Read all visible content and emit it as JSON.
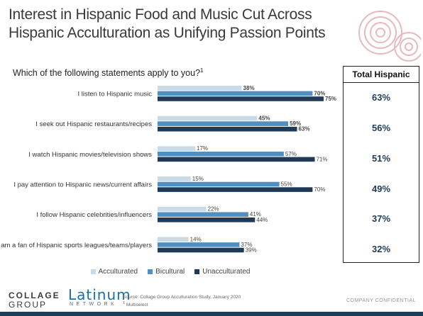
{
  "header": {
    "title": "Interest in Hispanic Food and Music Cut Across Hispanic Acculturation as Unifying Passion Points",
    "question": "Which of the following statements apply to you?",
    "question_footnote": "1"
  },
  "chart_data": {
    "type": "bar",
    "orientation": "horizontal",
    "categories": [
      "I listen to Hispanic music",
      "I seek out Hispanic restaurants/recipes",
      "I watch Hispanic movies/television shows",
      "I pay attention to Hispanic news/current affairs",
      "I follow Hispanic celebrities/influencers",
      "I am a fan of Hispanic sports leagues/teams/players"
    ],
    "series": [
      {
        "name": "Acculturated",
        "color": "#c9dbe8",
        "values": [
          38,
          45,
          17,
          15,
          22,
          14
        ],
        "labels": [
          "38%",
          "45%",
          "17%",
          "15%",
          "22%",
          "14%"
        ]
      },
      {
        "name": "Bicultural",
        "color": "#4f8fc2",
        "values": [
          70,
          59,
          57,
          55,
          41,
          37
        ],
        "labels": [
          "70%",
          "59%",
          "57%",
          "55%",
          "41%",
          "37%"
        ]
      },
      {
        "name": "Unacculturated",
        "color": "#1f3a56",
        "values": [
          75,
          63,
          71,
          70,
          44,
          39
        ],
        "labels": [
          "75%",
          "63%",
          "71%",
          "70%",
          "44%",
          "39%"
        ]
      }
    ],
    "bold_labels": [
      true,
      true,
      false,
      false,
      false,
      false
    ],
    "legend_position": "bottom",
    "xlim": [
      0,
      100
    ]
  },
  "total_hispanic": {
    "header": "Total Hispanic",
    "values": [
      "63%",
      "56%",
      "51%",
      "49%",
      "37%",
      "32%"
    ]
  },
  "footer": {
    "logo_collage_line1": "COLLAGE",
    "logo_collage_line2": "GROUP",
    "logo_latinum": "Latinum",
    "logo_latinum_sub": "NETWORK",
    "source_line1": "Source: Collage Group Acculturation Study, January 2020",
    "source_line2": "Multiselect",
    "source_footnote": "1",
    "confidential": "COMPANY CONFIDENTIAL"
  }
}
